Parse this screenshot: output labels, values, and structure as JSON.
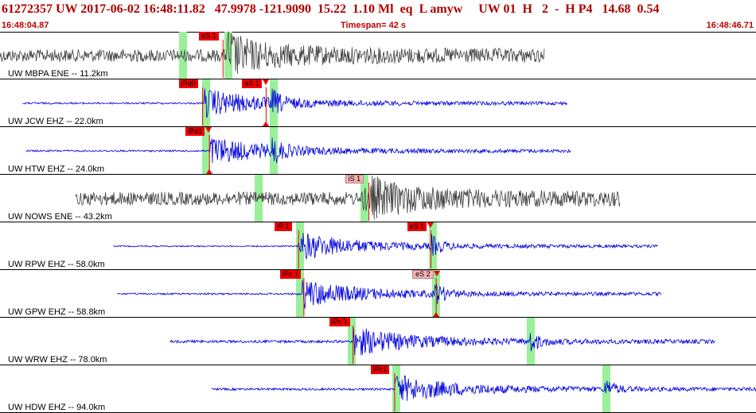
{
  "header": {
    "title": "61272357 UW 2017-06-02 16:48:11.82   47.9978 -121.9090  15.22  1.10 Ml  eq  L amyw     UW 01  H   2  -  H P4   14.68  0.54",
    "start_time": "16:48:04.87",
    "timespan": "Timespan=  42 s",
    "end_time": "16:48:46.71"
  },
  "colors": {
    "trace_blue": "#0000dd",
    "trace_gray": "#404040",
    "pick_red": "#ee0000",
    "pick_pink": "#f4b3b3",
    "window_green": "#99f099"
  },
  "stations": [
    {
      "label": "UW MBPA ENE -- 11.2km",
      "color": "gray",
      "start": 0.0,
      "end": 0.72,
      "amp": 0.28,
      "event": 0.3,
      "greens": [
        0.24,
        0.3
      ],
      "picks": [
        {
          "label": "eS 1",
          "pos": 0.295,
          "style": "hi",
          "mark": false,
          "foot": false
        }
      ]
    },
    {
      "label": "UW JCW EHZ -- 22.0km",
      "color": "blue",
      "start": 0.03,
      "end": 0.75,
      "amp": 0.04,
      "event": 0.27,
      "greens": [
        0.27,
        0.36
      ],
      "picks": [
        {
          "label": "iPd0",
          "pos": 0.268,
          "style": "hi",
          "mark": false,
          "foot": false
        },
        {
          "label": "eS 1",
          "pos": 0.352,
          "style": "hi",
          "mark": true,
          "foot": true
        }
      ]
    },
    {
      "label": "UW HTW EHZ -- 24.0km",
      "color": "blue",
      "start": 0.035,
      "end": 0.755,
      "amp": 0.04,
      "event": 0.277,
      "greens": [
        0.27,
        0.36
      ],
      "picks": [
        {
          "label": "iPd1",
          "pos": 0.277,
          "style": "hi",
          "mark": true,
          "foot": true
        }
      ]
    },
    {
      "label": "UW NOWS ENE -- 43.2km",
      "color": "gray",
      "start": 0.1,
      "end": 0.82,
      "amp": 0.3,
      "event": 0.49,
      "greens": [
        0.34,
        0.48
      ],
      "picks": [
        {
          "label": "iS 1",
          "pos": 0.488,
          "style": "lo",
          "mark": false,
          "foot": false
        }
      ]
    },
    {
      "label": "UW RPW EHZ -- 58.0km",
      "color": "blue",
      "start": 0.15,
      "end": 0.87,
      "amp": 0.03,
      "event": 0.395,
      "greens": [
        0.395,
        0.57
      ],
      "picks": [
        {
          "label": "iP 1",
          "pos": 0.395,
          "style": "hi",
          "mark": false,
          "foot": false
        },
        {
          "label": "eS 1",
          "pos": 0.57,
          "style": "hi",
          "mark": true,
          "foot": false
        }
      ]
    },
    {
      "label": "UW GPW EHZ -- 58.8km",
      "color": "blue",
      "start": 0.155,
      "end": 0.875,
      "amp": 0.04,
      "event": 0.4,
      "greens": [
        0.395,
        0.575
      ],
      "picks": [
        {
          "label": "iPc 1",
          "pos": 0.402,
          "style": "hi",
          "mark": false,
          "foot": false
        },
        {
          "label": "eS 2",
          "pos": 0.577,
          "style": "lo",
          "mark": true,
          "foot": true
        }
      ]
    },
    {
      "label": "UW WRW EHZ -- 78.0km",
      "color": "blue",
      "start": 0.225,
      "end": 0.945,
      "amp": 0.06,
      "event": 0.467,
      "greens": [
        0.463,
        0.7
      ],
      "picks": [
        {
          "label": "iPc 1",
          "pos": 0.467,
          "style": "hi",
          "mark": false,
          "foot": false
        }
      ]
    },
    {
      "label": "UW HDW EHZ -- 94.0km",
      "color": "blue",
      "start": 0.28,
      "end": 1.0,
      "amp": 0.05,
      "event": 0.522,
      "greens": [
        0.522,
        0.8
      ],
      "picks": [
        {
          "label": "iPc1",
          "pos": 0.522,
          "style": "hi",
          "mark": false,
          "foot": false
        }
      ]
    }
  ]
}
